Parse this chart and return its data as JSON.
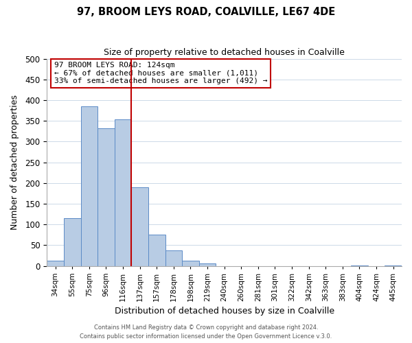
{
  "title": "97, BROOM LEYS ROAD, COALVILLE, LE67 4DE",
  "subtitle": "Size of property relative to detached houses in Coalville",
  "xlabel": "Distribution of detached houses by size in Coalville",
  "ylabel": "Number of detached properties",
  "bar_labels": [
    "34sqm",
    "55sqm",
    "75sqm",
    "96sqm",
    "116sqm",
    "137sqm",
    "157sqm",
    "178sqm",
    "198sqm",
    "219sqm",
    "240sqm",
    "260sqm",
    "281sqm",
    "301sqm",
    "322sqm",
    "342sqm",
    "363sqm",
    "383sqm",
    "404sqm",
    "424sqm",
    "445sqm"
  ],
  "bar_values": [
    12,
    115,
    385,
    332,
    354,
    190,
    75,
    38,
    12,
    5,
    0,
    0,
    0,
    0,
    0,
    0,
    0,
    0,
    1,
    0,
    1
  ],
  "bar_color": "#b8cce4",
  "bar_edge_color": "#5a8ac6",
  "vline_x_index": 4.5,
  "vline_color": "#c00000",
  "annotation_title": "97 BROOM LEYS ROAD: 124sqm",
  "annotation_line1": "← 67% of detached houses are smaller (1,011)",
  "annotation_line2": "33% of semi-detached houses are larger (492) →",
  "annotation_box_color": "#ffffff",
  "annotation_box_edge": "#c00000",
  "ylim": [
    0,
    500
  ],
  "yticks": [
    0,
    50,
    100,
    150,
    200,
    250,
    300,
    350,
    400,
    450,
    500
  ],
  "footnote1": "Contains HM Land Registry data © Crown copyright and database right 2024.",
  "footnote2": "Contains public sector information licensed under the Open Government Licence v.3.0."
}
